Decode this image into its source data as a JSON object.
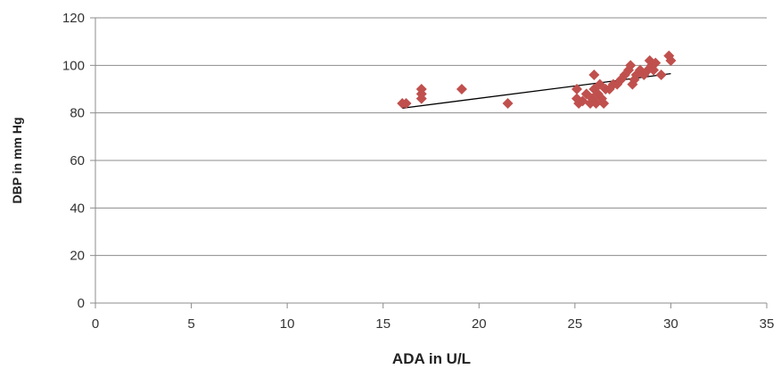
{
  "chart_data": {
    "type": "scatter",
    "title": "",
    "xlabel": "ADA in U/L",
    "ylabel": "DBP in mm Hg",
    "xlim": [
      0,
      35
    ],
    "ylim": [
      0,
      120
    ],
    "x_ticks": [
      0,
      5,
      10,
      15,
      20,
      25,
      30,
      35
    ],
    "y_ticks": [
      0,
      20,
      40,
      60,
      80,
      100,
      120
    ],
    "grid": "horizontal",
    "legend": "none",
    "marker": "diamond",
    "marker_color": "#C0504D",
    "trendline_color": "#000000",
    "points": [
      {
        "x": 16.0,
        "y": 84
      },
      {
        "x": 16.2,
        "y": 84
      },
      {
        "x": 17.0,
        "y": 90
      },
      {
        "x": 17.0,
        "y": 88
      },
      {
        "x": 17.0,
        "y": 86
      },
      {
        "x": 19.1,
        "y": 90
      },
      {
        "x": 21.5,
        "y": 84
      },
      {
        "x": 25.1,
        "y": 90
      },
      {
        "x": 25.1,
        "y": 86
      },
      {
        "x": 25.2,
        "y": 84
      },
      {
        "x": 25.4,
        "y": 85
      },
      {
        "x": 25.6,
        "y": 88
      },
      {
        "x": 25.8,
        "y": 84
      },
      {
        "x": 25.9,
        "y": 86
      },
      {
        "x": 26.0,
        "y": 96
      },
      {
        "x": 26.0,
        "y": 90
      },
      {
        "x": 26.1,
        "y": 84
      },
      {
        "x": 26.2,
        "y": 88
      },
      {
        "x": 26.3,
        "y": 92
      },
      {
        "x": 26.4,
        "y": 86
      },
      {
        "x": 26.5,
        "y": 84
      },
      {
        "x": 26.6,
        "y": 90
      },
      {
        "x": 26.8,
        "y": 90
      },
      {
        "x": 27.0,
        "y": 92
      },
      {
        "x": 27.2,
        "y": 92
      },
      {
        "x": 27.4,
        "y": 94
      },
      {
        "x": 27.6,
        "y": 96
      },
      {
        "x": 27.8,
        "y": 98
      },
      {
        "x": 27.9,
        "y": 100
      },
      {
        "x": 28.0,
        "y": 92
      },
      {
        "x": 28.1,
        "y": 94
      },
      {
        "x": 28.2,
        "y": 96
      },
      {
        "x": 28.4,
        "y": 98
      },
      {
        "x": 28.6,
        "y": 96
      },
      {
        "x": 28.8,
        "y": 98
      },
      {
        "x": 28.9,
        "y": 102
      },
      {
        "x": 29.0,
        "y": 100
      },
      {
        "x": 29.1,
        "y": 98
      },
      {
        "x": 29.2,
        "y": 101
      },
      {
        "x": 29.5,
        "y": 96
      },
      {
        "x": 29.9,
        "y": 104
      },
      {
        "x": 30.0,
        "y": 102
      }
    ],
    "trendline": {
      "x": [
        16.0,
        30.0
      ],
      "y": [
        82.0,
        96.5
      ]
    }
  }
}
